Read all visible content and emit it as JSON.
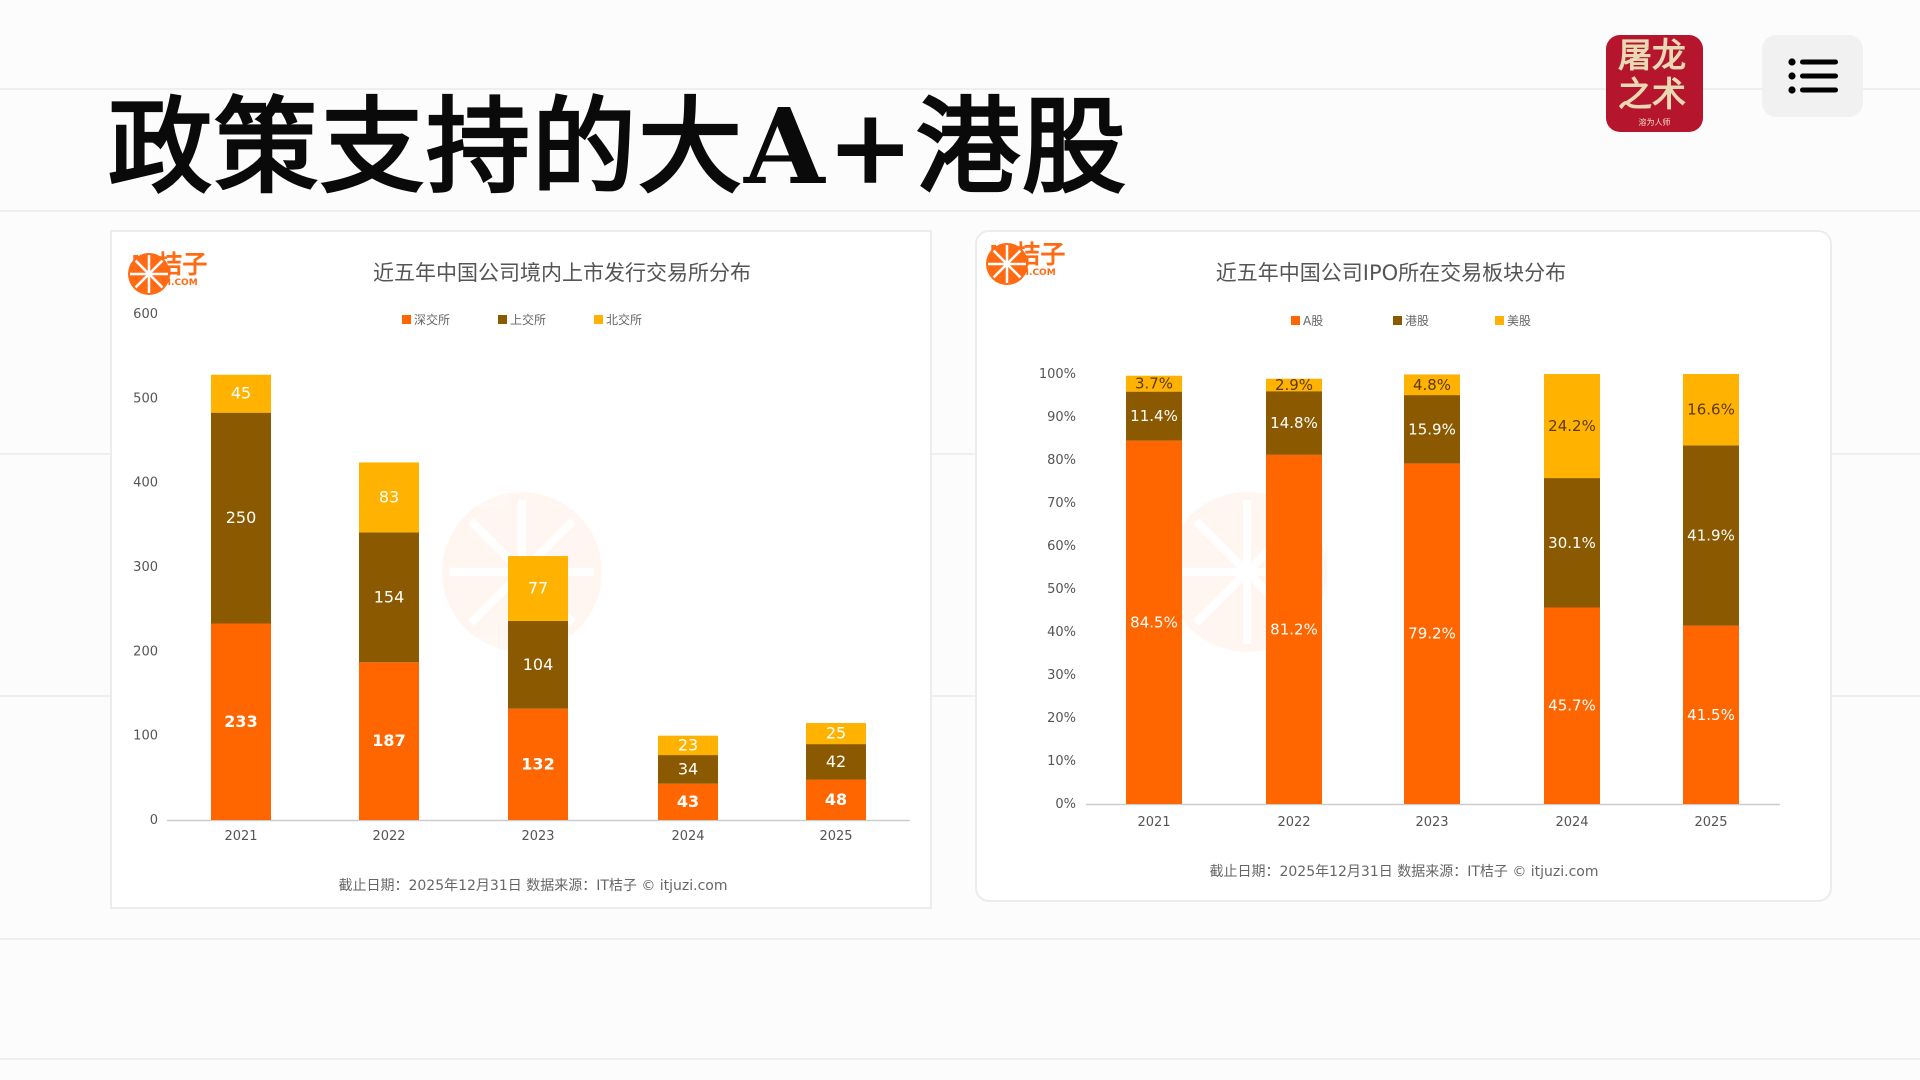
{
  "page": {
    "title": "政策支持的大A+港股",
    "brand_logo": {
      "line1": "屠龙",
      "line2": "之术",
      "tagline": "溶为人师"
    },
    "menu_icon": "list-icon"
  },
  "colors": {
    "orange": "#FF6600",
    "brown": "#8B5A00",
    "yellow": "#FFB300"
  },
  "watermark": "IT桔子",
  "chart_data": [
    {
      "type": "bar",
      "stacked": true,
      "title": "近五年中国公司境内上市发行交易所分布",
      "logo": {
        "name": "IT桔子",
        "url": "ITJUZI.COM"
      },
      "categories": [
        "2021",
        "2022",
        "2023",
        "2024",
        "2025"
      ],
      "series": [
        {
          "name": "深交所",
          "color": "#FF6600",
          "values": [
            233,
            187,
            132,
            43,
            48
          ]
        },
        {
          "name": "上交所",
          "color": "#8B5A00",
          "values": [
            250,
            154,
            104,
            34,
            42
          ]
        },
        {
          "name": "北交所",
          "color": "#FFB300",
          "values": [
            45,
            83,
            77,
            23,
            25
          ]
        }
      ],
      "ylim": [
        0,
        600
      ],
      "yticks": [
        "0",
        "100",
        "200",
        "300",
        "400",
        "500",
        "600"
      ],
      "legend": "top-center",
      "footer": "截止日期：2025年12月31日    数据来源：IT桔子 © itjuzi.com"
    },
    {
      "type": "bar",
      "stacked": true,
      "title": "近五年中国公司IPO所在交易板块分布",
      "logo": {
        "name": "IT桔子",
        "url": "ITJUZI.COM"
      },
      "categories": [
        "2021",
        "2022",
        "2023",
        "2024",
        "2025"
      ],
      "series": [
        {
          "name": "A股",
          "color": "#FF6600",
          "values": [
            84.5,
            81.2,
            79.2,
            45.7,
            41.5
          ]
        },
        {
          "name": "港股",
          "color": "#8B5A00",
          "values": [
            11.4,
            14.8,
            15.9,
            30.1,
            41.9
          ]
        },
        {
          "name": "美股",
          "color": "#FFB300",
          "values": [
            3.7,
            2.9,
            4.8,
            24.2,
            16.6
          ]
        }
      ],
      "ylim": [
        0,
        100
      ],
      "yticks": [
        "0%",
        "10%",
        "20%",
        "30%",
        "40%",
        "50%",
        "60%",
        "70%",
        "80%",
        "90%",
        "100%"
      ],
      "value_suffix": "%",
      "legend": "top-center",
      "footer": "截止日期：2025年12月31日    数据来源：IT桔子 © itjuzi.com"
    }
  ]
}
